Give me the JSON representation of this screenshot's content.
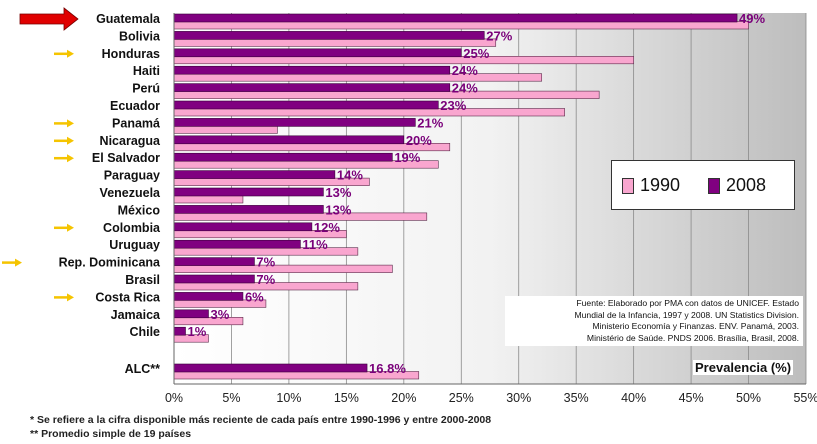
{
  "chart_data": {
    "type": "bar",
    "orientation": "horizontal",
    "categories": [
      "Guatemala",
      "Bolivia",
      "Honduras",
      "Haiti",
      "Perú",
      "Ecuador",
      "Panamá",
      "Nicaragua",
      "El Salvador",
      "Paraguay",
      "Venezuela",
      "México",
      "Colombia",
      "Uruguay",
      "Rep. Dominicana",
      "Brasil",
      "Costa Rica",
      "Jamaica",
      "Chile",
      "ALC**"
    ],
    "series": [
      {
        "name": "1990",
        "color": "#f9a6cf",
        "values": [
          50,
          28,
          40,
          32,
          37,
          34,
          9,
          24,
          23,
          17,
          6,
          22,
          15,
          16,
          19,
          16,
          8,
          6,
          3,
          21.3
        ]
      },
      {
        "name": "2008",
        "color": "#800080",
        "values": [
          49,
          27,
          25,
          24,
          24,
          23,
          21,
          20,
          19,
          14,
          13,
          13,
          12,
          11,
          7,
          7,
          6,
          3,
          1,
          16.8
        ]
      }
    ],
    "data_labels": [
      "49%",
      "27%",
      "25%",
      "24%",
      "24%",
      "23%",
      "21%",
      "20%",
      "19%",
      "14%",
      "13%",
      "13%",
      "12%",
      "11%",
      "7%",
      "7%",
      "6%",
      "3%",
      "1%",
      "16.8%"
    ],
    "highlighted": {
      "red_arrow": [
        "Guatemala"
      ],
      "yellow_arrow": [
        "Honduras",
        "Panamá",
        "Nicaragua",
        "El Salvador",
        "Colombia",
        "Rep. Dominicana",
        "Costa Rica"
      ]
    },
    "xlabel": "Prevalencia (%)",
    "xlim": [
      0,
      55
    ],
    "xticks": [
      "0%",
      "5%",
      "10%",
      "15%",
      "20%",
      "25%",
      "30%",
      "35%",
      "40%",
      "45%",
      "50%",
      "55%"
    ],
    "grid": true,
    "legend_position": "right"
  },
  "legend": {
    "label_1990": "1990",
    "label_2008": "2008"
  },
  "source_note": [
    "Fuente: Elaborado por PMA con datos de UNICEF. Estado",
    "Mundial de la Infancia, 1997 y 2008. UN Statistics Division.",
    "Ministerio Economía y Finanzas. ENV. Panamá, 2003.",
    "Ministério de Saúde.  PNDS 2006. Brasília, Brasil, 2008."
  ],
  "footnotes": [
    "*  Se refiere a la cifra disponible más reciente de cada país entre 1990-1996 y entre 2000-2008",
    "** Promedio simple de 19 países"
  ],
  "colors": {
    "arrow_red": "#e00000",
    "arrow_yellow": "#f5c400",
    "label_color": "#7a007a"
  }
}
